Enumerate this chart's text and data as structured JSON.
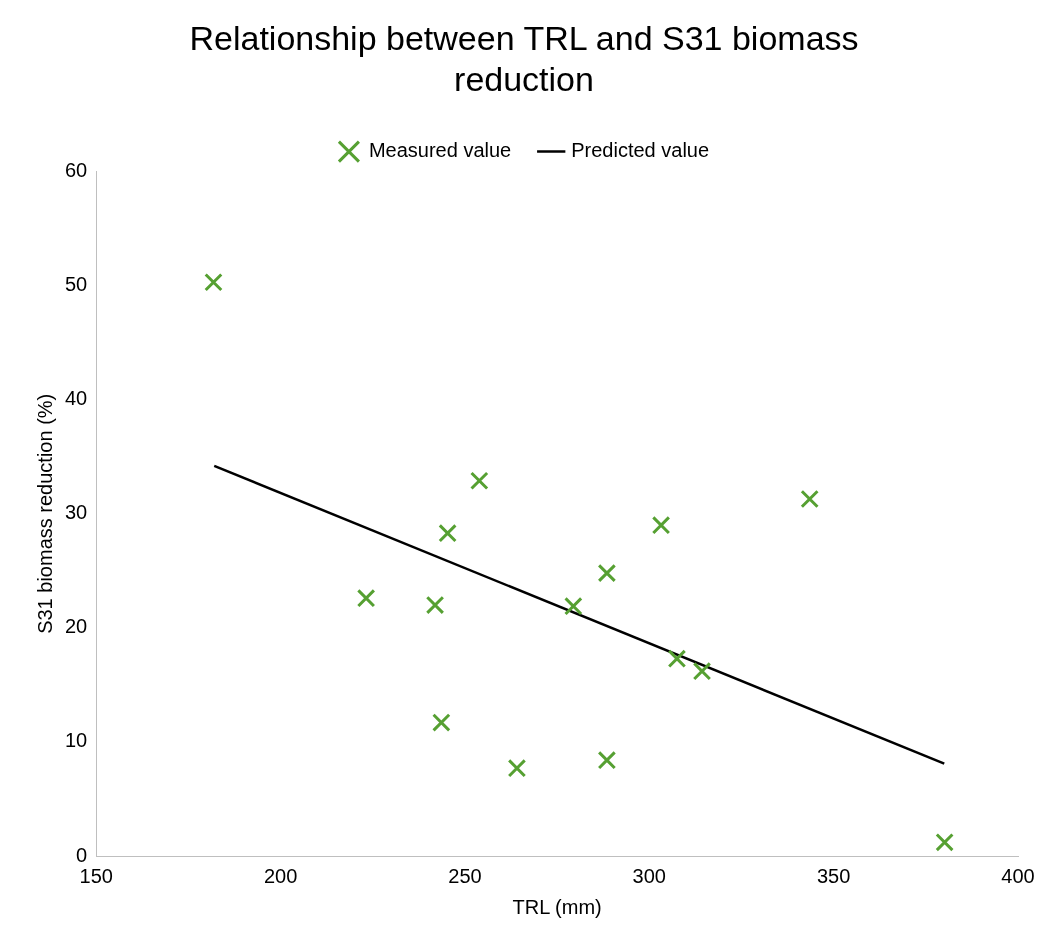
{
  "chart_data": {
    "type": "scatter",
    "title": "Relationship between TRL and S31 biomass reduction",
    "xlabel": "TRL (mm)",
    "ylabel": "S31 biomass reduction (%)",
    "series": [
      {
        "name": "Measured value",
        "color": "#56a032",
        "type": "scatter",
        "marker": "cross",
        "x": [
          181.8,
          223.2,
          241.9,
          245.3,
          243.6,
          253.9,
          264.1,
          279.4,
          288.5,
          288.5,
          303.2,
          307.5,
          314.3,
          343.5,
          380.1
        ],
        "values": [
          50.3,
          22.6,
          22.0,
          28.3,
          11.7,
          32.9,
          7.7,
          21.9,
          24.8,
          8.4,
          29.0,
          17.3,
          16.2,
          31.3,
          1.2
        ]
      },
      {
        "name": "Predicted value",
        "color": "#000000",
        "type": "line",
        "marker": "none",
        "x": [
          182,
          380
        ],
        "values": [
          34.2,
          8.1
        ]
      }
    ],
    "xlim": [
      150,
      400
    ],
    "xticks": [
      150,
      200,
      250,
      300,
      350,
      400
    ],
    "ylim": [
      0,
      60
    ],
    "yticks": [
      0,
      10,
      20,
      30,
      40,
      50,
      60
    ],
    "grid": false,
    "legend": "top"
  }
}
